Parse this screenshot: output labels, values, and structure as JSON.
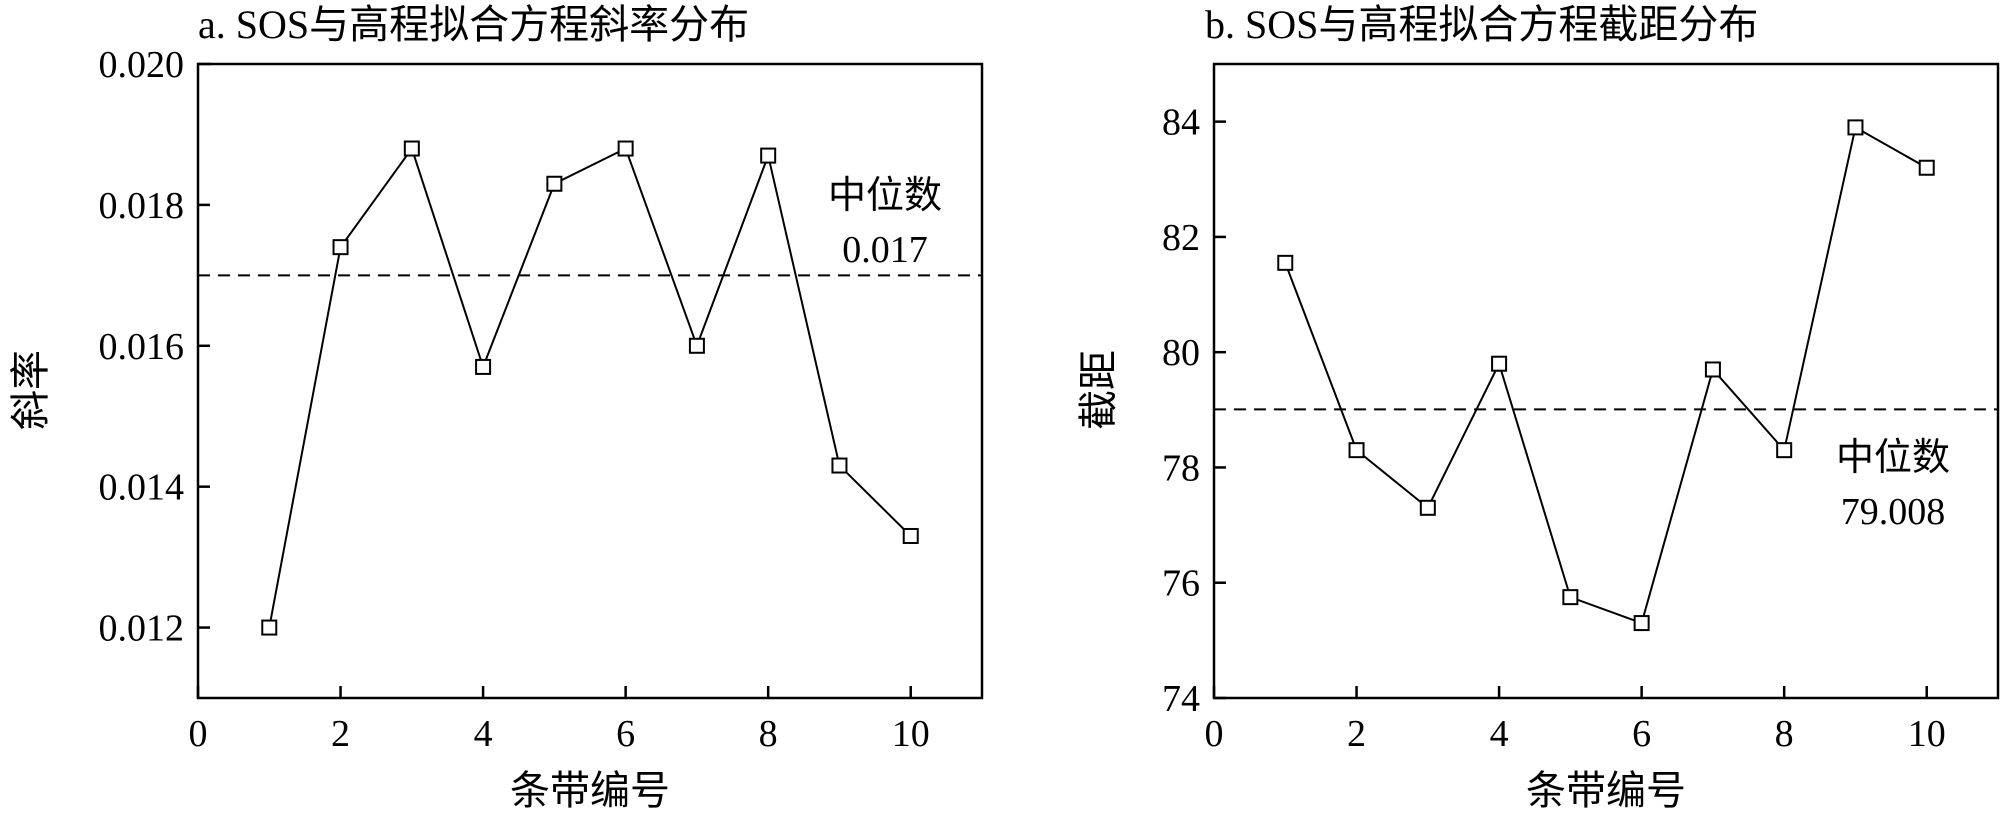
{
  "chart_data": [
    {
      "type": "line",
      "title": "a. SOS与高程拟合方程斜率分布",
      "xlabel": "条带编号",
      "ylabel": "斜率",
      "xlim": [
        0,
        11
      ],
      "ylim": [
        0.011,
        0.02
      ],
      "xticks": [
        "0",
        "2",
        "4",
        "6",
        "8",
        "10"
      ],
      "yticks": [
        "0.012",
        "0.014",
        "0.016",
        "0.018",
        "0.020"
      ],
      "x": [
        1,
        2,
        3,
        4,
        5,
        6,
        7,
        8,
        9,
        10
      ],
      "series": [
        {
          "values": [
            0.012,
            0.0174,
            0.0188,
            0.0157,
            0.0183,
            0.0188,
            0.016,
            0.0187,
            0.0143,
            0.0133
          ]
        }
      ],
      "median": {
        "value": 0.017,
        "label_line1": "中位数",
        "label_line2": "0.017"
      },
      "grid": false,
      "marker": "square"
    },
    {
      "type": "line",
      "title": "b. SOS与高程拟合方程截距分布",
      "xlabel": "条带编号",
      "ylabel": "截距",
      "xlim": [
        0,
        11
      ],
      "ylim": [
        74,
        85
      ],
      "xticks": [
        "0",
        "2",
        "4",
        "6",
        "8",
        "10"
      ],
      "yticks": [
        "74",
        "76",
        "78",
        "80",
        "82",
        "84"
      ],
      "x": [
        1,
        2,
        3,
        4,
        5,
        6,
        7,
        8,
        9,
        10
      ],
      "series": [
        {
          "values": [
            81.55,
            78.3,
            77.3,
            79.8,
            75.75,
            75.3,
            79.7,
            78.3,
            83.9,
            83.2
          ]
        }
      ],
      "median": {
        "value": 79.008,
        "label_line1": "中位数",
        "label_line2": "79.008"
      },
      "grid": false,
      "marker": "square"
    }
  ]
}
